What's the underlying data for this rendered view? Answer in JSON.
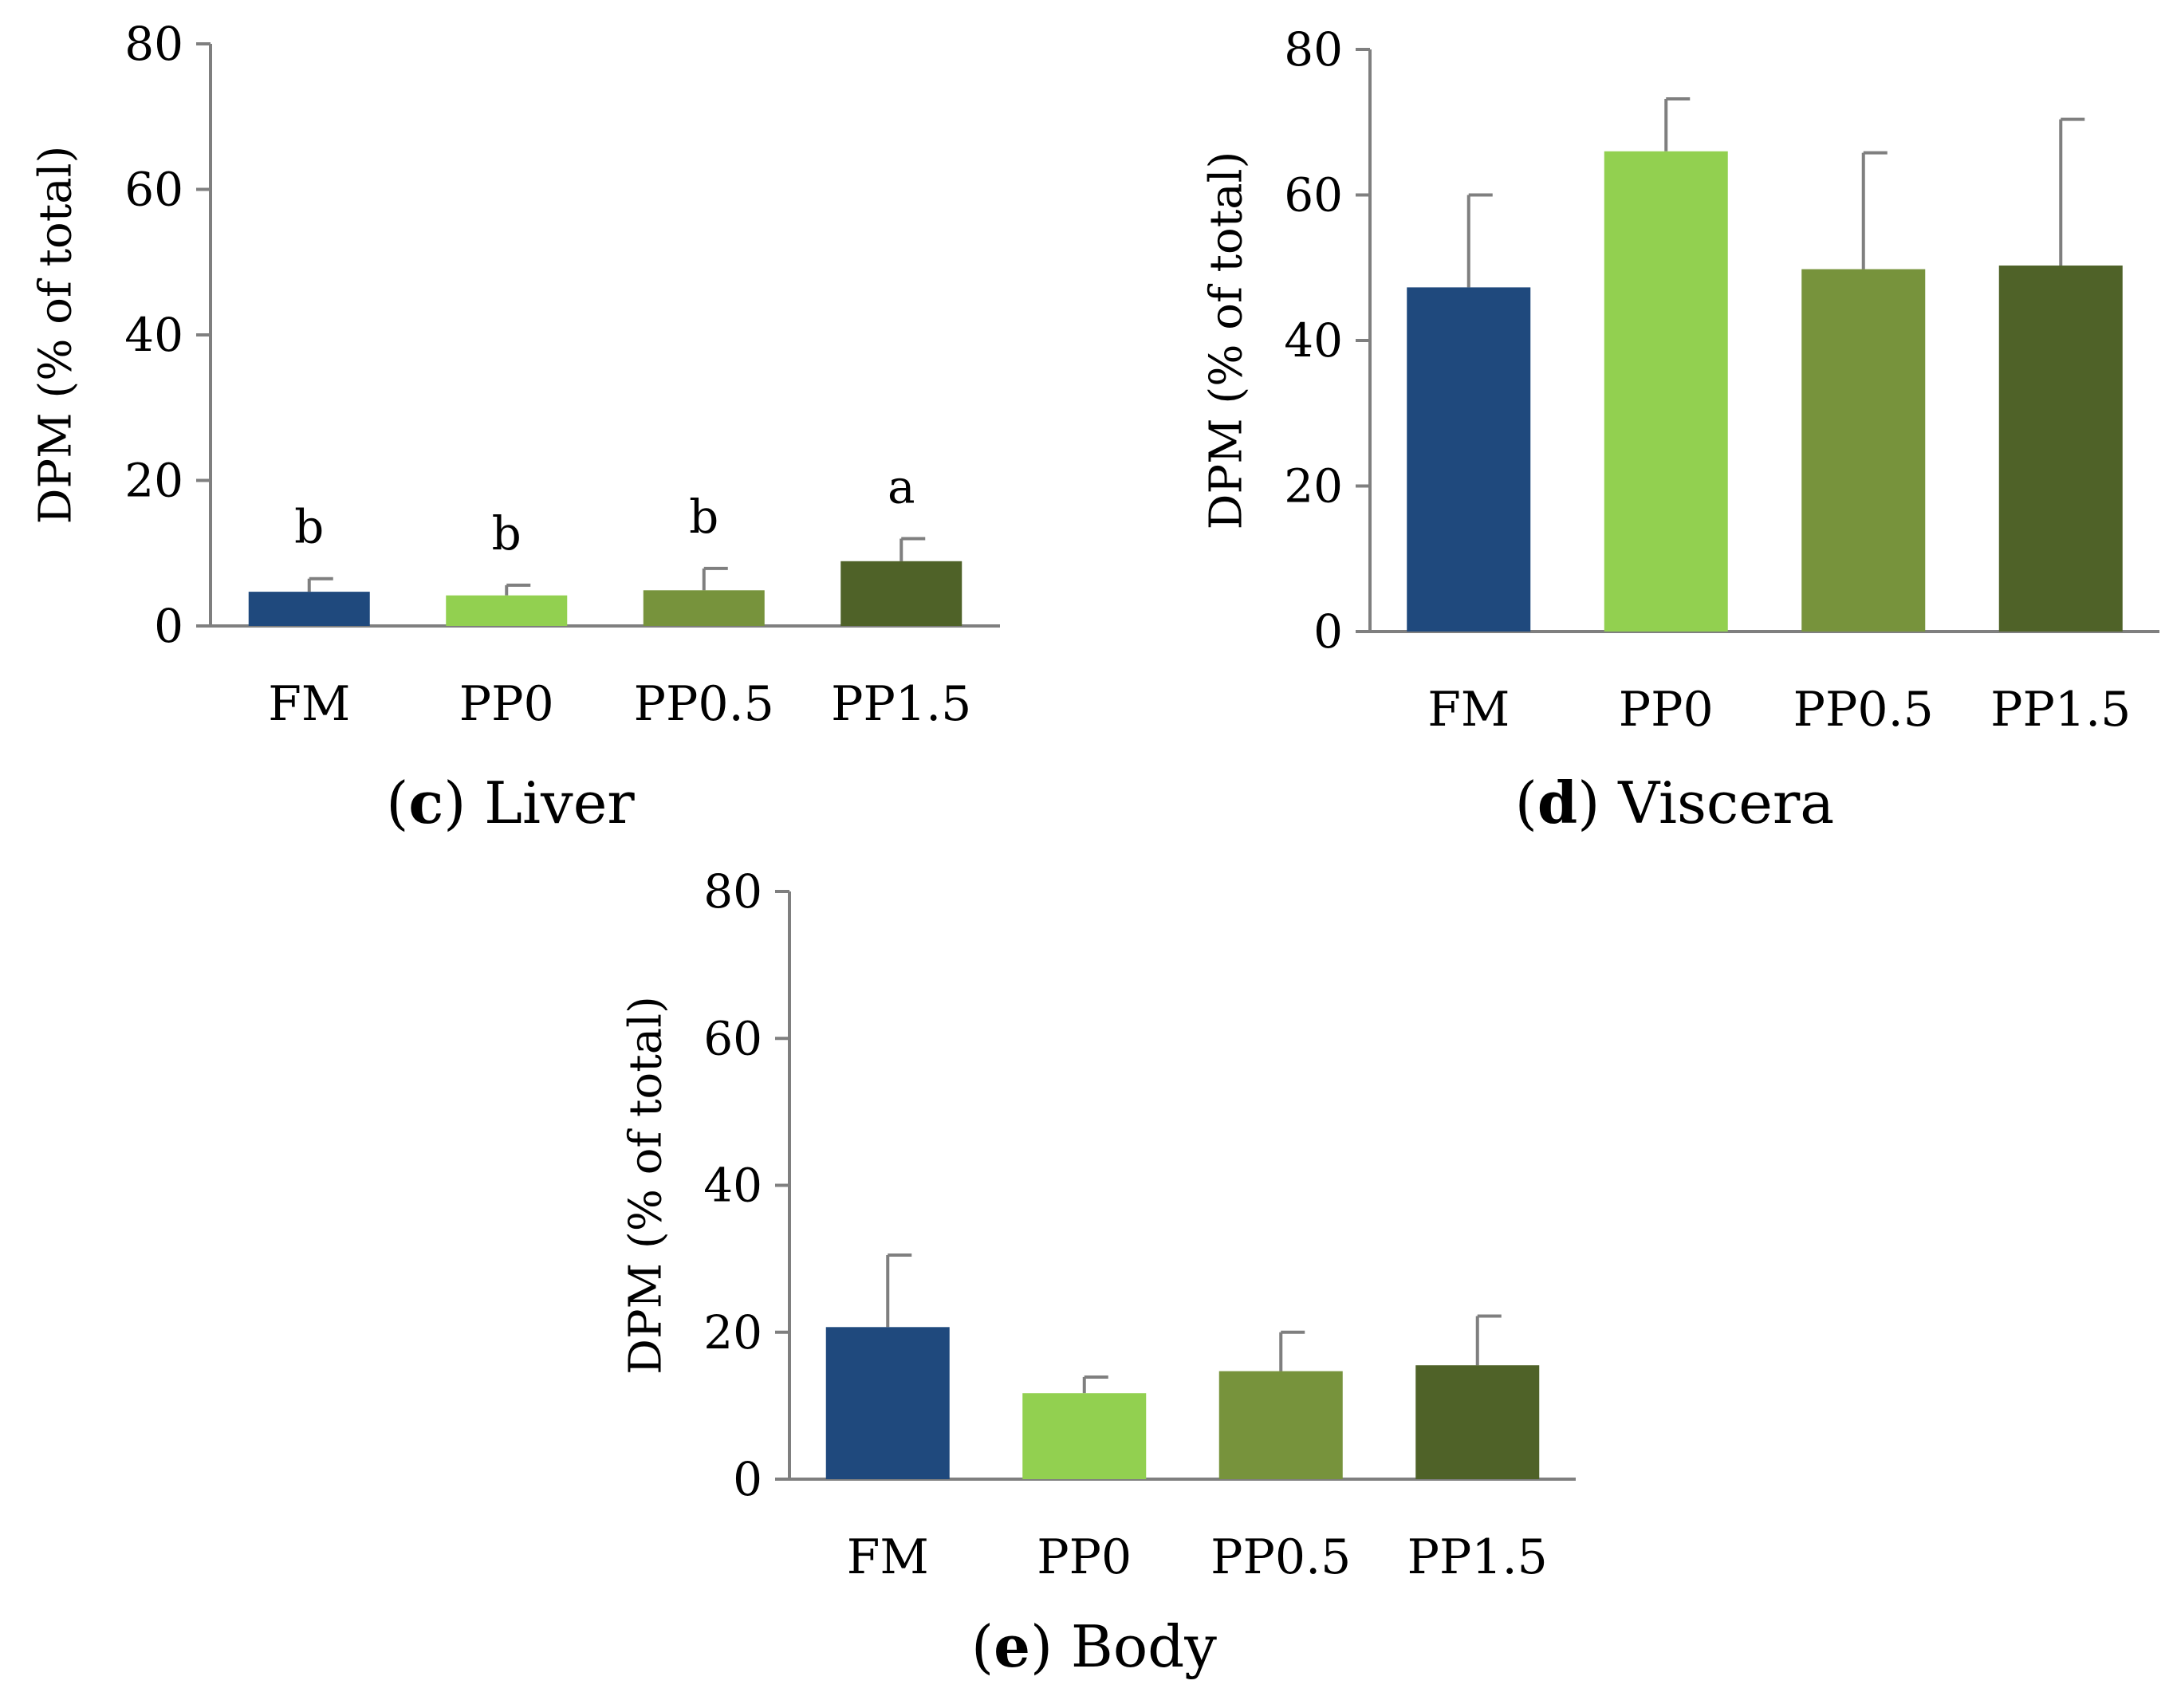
{
  "colors": {
    "FM": "#1f497d",
    "PP0": "#92d050",
    "PP0.5": "#77933c",
    "PP1.5": "#4f6228",
    "axis": "#7f7f7f",
    "error": "#7f7f7f"
  },
  "chart_data": [
    {
      "id": "liver",
      "type": "bar",
      "caption_letter": "c",
      "caption_text": " Liver",
      "categories": [
        "FM",
        "PP0",
        "PP0.5",
        "PP1.5"
      ],
      "values": [
        4.7,
        4.2,
        4.9,
        8.9
      ],
      "errors": [
        1.8,
        1.4,
        3.0,
        3.1
      ],
      "significance": [
        "b",
        "b",
        "b",
        "a"
      ],
      "ylabel": "DPM (% of total)",
      "ylim": [
        0,
        80
      ],
      "yticks": [
        "0",
        "20",
        "40",
        "60",
        "80"
      ],
      "ytick_values": [
        0,
        20,
        40,
        60,
        80
      ]
    },
    {
      "id": "viscera",
      "type": "bar",
      "caption_letter": "d",
      "caption_text": " Viscera",
      "categories": [
        "FM",
        "PP0",
        "PP0.5",
        "PP1.5"
      ],
      "values": [
        47.3,
        66.0,
        49.8,
        50.3
      ],
      "errors": [
        12.7,
        7.2,
        16.0,
        20.1
      ],
      "significance": [
        "",
        "",
        "",
        ""
      ],
      "ylabel": "DPM (% of total)",
      "ylim": [
        0,
        80
      ],
      "yticks": [
        "0",
        "20",
        "40",
        "60",
        "80"
      ],
      "ytick_values": [
        0,
        20,
        40,
        60,
        80
      ]
    },
    {
      "id": "body",
      "type": "bar",
      "caption_letter": "e",
      "caption_text": " Body",
      "categories": [
        "FM",
        "PP0",
        "PP0.5",
        "PP1.5"
      ],
      "values": [
        20.7,
        11.7,
        14.7,
        15.5
      ],
      "errors": [
        9.8,
        2.2,
        5.3,
        6.7
      ],
      "significance": [
        "",
        "",
        "",
        ""
      ],
      "ylabel": "DPM (% of total)",
      "ylim": [
        0,
        80
      ],
      "yticks": [
        "0",
        "20",
        "40",
        "60",
        "80"
      ],
      "ytick_values": [
        0,
        20,
        40,
        60,
        80
      ]
    }
  ]
}
